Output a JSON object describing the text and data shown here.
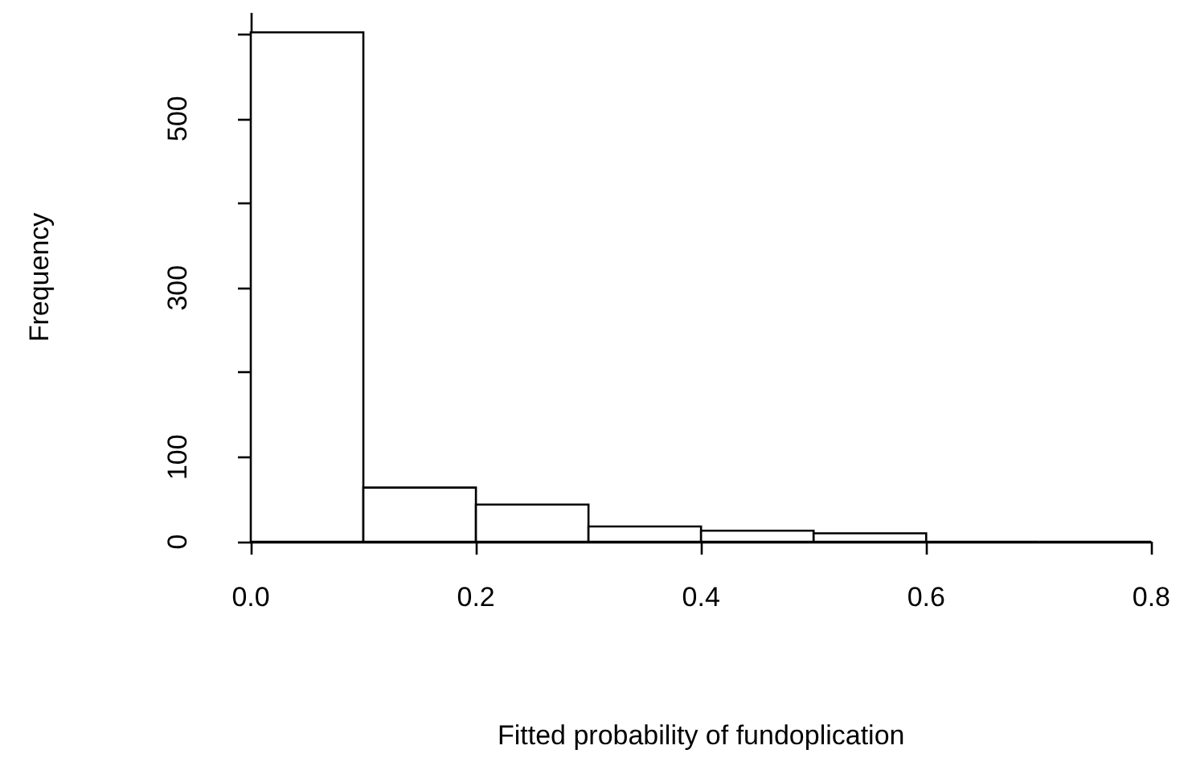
{
  "chart_data": {
    "type": "histogram",
    "xlabel": "Fitted probability of fundoplication",
    "ylabel": "Frequency",
    "bins": [
      0,
      0.1,
      0.2,
      0.3,
      0.4,
      0.5,
      0.6,
      0.7,
      0.8
    ],
    "values": [
      602,
      64,
      44,
      18,
      13,
      10,
      0,
      0
    ],
    "color": "#ffffff",
    "xlim": [
      0,
      0.8
    ],
    "xticks": [
      {
        "value": 0,
        "label": "0.0"
      },
      0.2,
      0.4,
      0.6,
      0.8
    ],
    "ylim": [
      0,
      625
    ],
    "yticks": [
      0,
      100,
      {
        "value": 200,
        "label": null
      },
      300,
      {
        "value": 400,
        "label": null
      },
      500,
      {
        "value": 600,
        "label": null
      }
    ],
    "grid": false
  }
}
